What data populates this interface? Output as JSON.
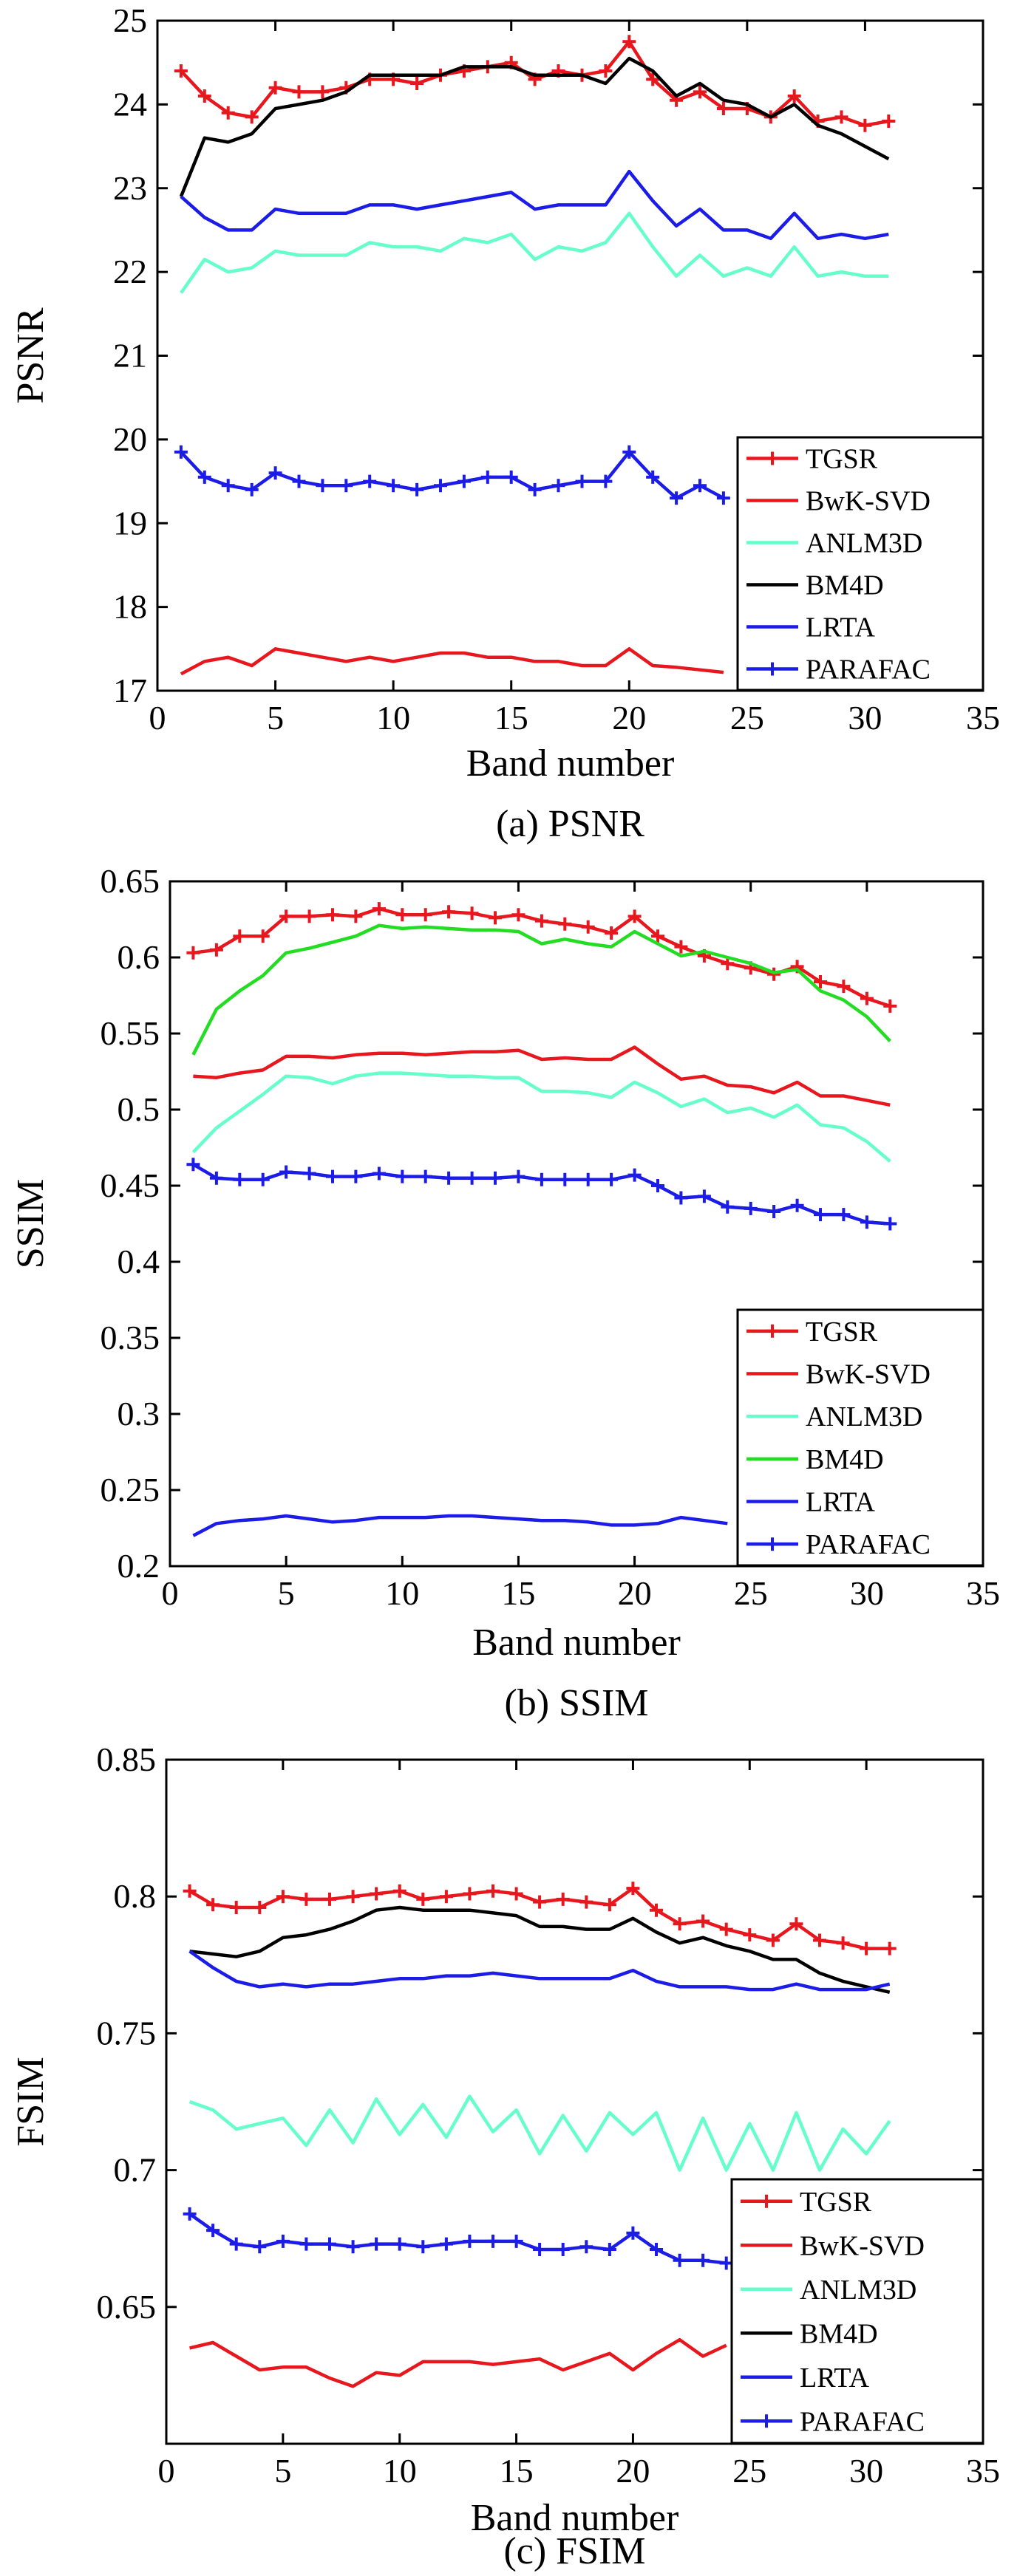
{
  "chart_data": [
    {
      "type": "line",
      "title": "",
      "caption": "(a) PSNR",
      "xlabel": "Band number",
      "ylabel": "PSNR",
      "xlim": [
        0,
        35
      ],
      "ylim": [
        17,
        25
      ],
      "xticks": [
        "0",
        "5",
        "10",
        "15",
        "20",
        "25",
        "30",
        "35"
      ],
      "yticks": [
        "17",
        "18",
        "19",
        "20",
        "21",
        "22",
        "23",
        "24",
        "25"
      ],
      "legend_position": "bottom-right",
      "x": [
        1,
        2,
        3,
        4,
        5,
        6,
        7,
        8,
        9,
        10,
        11,
        12,
        13,
        14,
        15,
        16,
        17,
        18,
        19,
        20,
        21,
        22,
        23,
        24,
        25,
        26,
        27,
        28,
        29,
        30,
        31
      ],
      "series": [
        {
          "name": "TGSR",
          "color": "#e8161d",
          "marker": "plus",
          "values": [
            24.4,
            24.1,
            23.9,
            23.85,
            24.2,
            24.15,
            24.15,
            24.2,
            24.3,
            24.3,
            24.25,
            24.35,
            24.4,
            24.45,
            24.5,
            24.3,
            24.4,
            24.35,
            24.4,
            24.75,
            24.3,
            24.05,
            24.15,
            23.95,
            23.95,
            23.85,
            24.1,
            23.8,
            23.85,
            23.75,
            23.8
          ]
        },
        {
          "name": "BwK-SVD",
          "color": "#e8161d",
          "marker": "none",
          "values": [
            17.2,
            17.35,
            17.4,
            17.3,
            17.5,
            17.45,
            17.4,
            17.35,
            17.4,
            17.35,
            17.4,
            17.45,
            17.45,
            17.4,
            17.4,
            17.35,
            17.35,
            17.3,
            17.3,
            17.5,
            17.3,
            17.28,
            17.25,
            17.22,
            null,
            null,
            null,
            null,
            null,
            null,
            null
          ]
        },
        {
          "name": "ANLM3D",
          "color": "#66ffcc",
          "marker": "none",
          "values": [
            21.75,
            22.15,
            22.0,
            22.05,
            22.25,
            22.2,
            22.2,
            22.2,
            22.35,
            22.3,
            22.3,
            22.25,
            22.4,
            22.35,
            22.45,
            22.15,
            22.3,
            22.25,
            22.35,
            22.7,
            22.3,
            21.95,
            22.2,
            21.95,
            22.05,
            21.95,
            22.3,
            21.95,
            22.0,
            21.95,
            21.95
          ]
        },
        {
          "name": "BM4D",
          "color": "#000000",
          "marker": "none",
          "values": [
            22.9,
            23.6,
            23.55,
            23.65,
            23.95,
            24.0,
            24.05,
            24.15,
            24.35,
            24.35,
            24.35,
            24.35,
            24.45,
            24.45,
            24.45,
            24.35,
            24.35,
            24.35,
            24.25,
            24.55,
            24.4,
            24.1,
            24.25,
            24.05,
            24.0,
            23.85,
            24.0,
            23.75,
            23.65,
            23.5,
            23.35
          ]
        },
        {
          "name": "LRTA",
          "color": "#1c1ce8",
          "marker": "none",
          "values": [
            22.9,
            22.65,
            22.5,
            22.5,
            22.75,
            22.7,
            22.7,
            22.7,
            22.8,
            22.8,
            22.75,
            22.8,
            22.85,
            22.9,
            22.95,
            22.75,
            22.8,
            22.8,
            22.8,
            23.2,
            22.85,
            22.55,
            22.75,
            22.5,
            22.5,
            22.4,
            22.7,
            22.4,
            22.45,
            22.4,
            22.45
          ]
        },
        {
          "name": "PARAFAC",
          "color": "#1c1ce8",
          "marker": "plus",
          "values": [
            19.85,
            19.55,
            19.45,
            19.4,
            19.6,
            19.5,
            19.45,
            19.45,
            19.5,
            19.45,
            19.4,
            19.45,
            19.5,
            19.55,
            19.55,
            19.4,
            19.45,
            19.5,
            19.5,
            19.85,
            19.55,
            19.3,
            19.45,
            19.3,
            null,
            null,
            null,
            null,
            null,
            null,
            null
          ]
        }
      ]
    },
    {
      "type": "line",
      "title": "",
      "caption": "(b) SSIM",
      "xlabel": "Band number",
      "ylabel": "SSIM",
      "xlim": [
        0,
        35
      ],
      "ylim": [
        0.2,
        0.65
      ],
      "xticks": [
        "0",
        "5",
        "10",
        "15",
        "20",
        "25",
        "30",
        "35"
      ],
      "yticks": [
        "0.2",
        "0.25",
        "0.3",
        "0.35",
        "0.4",
        "0.45",
        "0.5",
        "0.55",
        "0.6",
        "0.65"
      ],
      "legend_position": "bottom-right",
      "x": [
        1,
        2,
        3,
        4,
        5,
        6,
        7,
        8,
        9,
        10,
        11,
        12,
        13,
        14,
        15,
        16,
        17,
        18,
        19,
        20,
        21,
        22,
        23,
        24,
        25,
        26,
        27,
        28,
        29,
        30,
        31
      ],
      "series": [
        {
          "name": "TGSR",
          "color": "#e8161d",
          "marker": "plus",
          "values": [
            0.603,
            0.605,
            0.614,
            0.614,
            0.627,
            0.627,
            0.628,
            0.627,
            0.632,
            0.628,
            0.628,
            0.63,
            0.629,
            0.626,
            0.628,
            0.624,
            0.622,
            0.62,
            0.616,
            0.627,
            0.614,
            0.607,
            0.601,
            0.596,
            0.593,
            0.589,
            0.594,
            0.584,
            0.581,
            0.573,
            0.568
          ]
        },
        {
          "name": "BwK-SVD",
          "color": "#e8161d",
          "marker": "none",
          "values": [
            0.522,
            0.521,
            0.524,
            0.526,
            0.535,
            0.535,
            0.534,
            0.536,
            0.537,
            0.537,
            0.536,
            0.537,
            0.538,
            0.538,
            0.539,
            0.533,
            0.534,
            0.533,
            0.533,
            0.541,
            0.53,
            0.52,
            0.522,
            0.516,
            0.515,
            0.511,
            0.518,
            0.509,
            0.509,
            0.506,
            0.503
          ]
        },
        {
          "name": "ANLM3D",
          "color": "#66ffcc",
          "marker": "none",
          "values": [
            0.472,
            0.488,
            0.499,
            0.51,
            0.522,
            0.521,
            0.517,
            0.522,
            0.524,
            0.524,
            0.523,
            0.522,
            0.522,
            0.521,
            0.521,
            0.512,
            0.512,
            0.511,
            0.508,
            0.518,
            0.511,
            0.502,
            0.507,
            0.498,
            0.501,
            0.495,
            0.503,
            0.49,
            0.488,
            0.479,
            0.466
          ]
        },
        {
          "name": "BM4D",
          "color": "#22dd22",
          "marker": "none",
          "values": [
            0.536,
            0.566,
            0.578,
            0.588,
            0.603,
            0.606,
            0.61,
            0.614,
            0.621,
            0.619,
            0.62,
            0.619,
            0.618,
            0.618,
            0.617,
            0.609,
            0.612,
            0.609,
            0.607,
            0.617,
            0.609,
            0.601,
            0.604,
            0.6,
            0.596,
            0.59,
            0.592,
            0.578,
            0.572,
            0.561,
            0.545
          ]
        },
        {
          "name": "LRTA",
          "color": "#1c1ce8",
          "marker": "none",
          "values": [
            0.22,
            0.228,
            0.23,
            0.231,
            0.233,
            0.231,
            0.229,
            0.23,
            0.232,
            0.232,
            0.232,
            0.233,
            0.233,
            0.232,
            0.231,
            0.23,
            0.23,
            0.229,
            0.227,
            0.227,
            0.228,
            0.232,
            0.23,
            0.228,
            null,
            null,
            null,
            null,
            null,
            null,
            null
          ]
        },
        {
          "name": "PARAFAC",
          "color": "#1c1ce8",
          "marker": "plus",
          "values": [
            0.464,
            0.455,
            0.454,
            0.454,
            0.459,
            0.458,
            0.456,
            0.456,
            0.458,
            0.456,
            0.456,
            0.455,
            0.455,
            0.455,
            0.456,
            0.454,
            0.454,
            0.454,
            0.454,
            0.457,
            0.45,
            0.442,
            0.443,
            0.436,
            0.435,
            0.433,
            0.437,
            0.431,
            0.431,
            0.426,
            0.425
          ]
        }
      ]
    },
    {
      "type": "line",
      "title": "",
      "caption": "(c) FSIM",
      "xlabel": "Band number",
      "ylabel": "FSIM",
      "xlim": [
        0,
        35
      ],
      "ylim": [
        0.6,
        0.85
      ],
      "yrange_note": "axis spans 0.6 to 0.85",
      "xticks": [
        "0",
        "5",
        "10",
        "15",
        "20",
        "25",
        "30",
        "35"
      ],
      "yticks": [
        "0.65",
        "0.7",
        "0.75",
        "0.8",
        "0.85"
      ],
      "legend_position": "bottom-right",
      "x": [
        1,
        2,
        3,
        4,
        5,
        6,
        7,
        8,
        9,
        10,
        11,
        12,
        13,
        14,
        15,
        16,
        17,
        18,
        19,
        20,
        21,
        22,
        23,
        24,
        25,
        26,
        27,
        28,
        29,
        30,
        31
      ],
      "series": [
        {
          "name": "TGSR",
          "color": "#e8161d",
          "marker": "plus",
          "values": [
            0.802,
            0.797,
            0.796,
            0.796,
            0.8,
            0.799,
            0.799,
            0.8,
            0.801,
            0.802,
            0.799,
            0.8,
            0.801,
            0.802,
            0.801,
            0.798,
            0.799,
            0.798,
            0.797,
            0.803,
            0.795,
            0.79,
            0.791,
            0.788,
            0.786,
            0.784,
            0.79,
            0.784,
            0.783,
            0.781,
            0.781
          ]
        },
        {
          "name": "BwK-SVD",
          "color": "#e8161d",
          "marker": "none",
          "values": [
            0.635,
            0.637,
            0.632,
            0.627,
            0.628,
            0.628,
            0.624,
            0.621,
            0.626,
            0.625,
            0.63,
            0.63,
            0.63,
            0.629,
            0.63,
            0.631,
            0.627,
            0.63,
            0.633,
            0.627,
            0.633,
            0.638,
            0.632,
            0.636,
            null,
            null,
            null,
            null,
            null,
            null,
            null
          ]
        },
        {
          "name": "ANLM3D",
          "color": "#66ffcc",
          "marker": "none",
          "values": [
            0.725,
            0.722,
            0.715,
            0.717,
            0.719,
            0.709,
            0.722,
            0.71,
            0.726,
            0.713,
            0.724,
            0.712,
            0.727,
            0.714,
            0.722,
            0.706,
            0.72,
            0.707,
            0.721,
            0.713,
            0.721,
            0.7,
            0.719,
            0.7,
            0.717,
            0.7,
            0.721,
            0.7,
            0.715,
            0.706,
            0.718
          ]
        },
        {
          "name": "BM4D",
          "color": "#000000",
          "marker": "none",
          "values": [
            0.78,
            0.779,
            0.778,
            0.78,
            0.785,
            0.786,
            0.788,
            0.791,
            0.795,
            0.796,
            0.795,
            0.795,
            0.795,
            0.794,
            0.793,
            0.789,
            0.789,
            0.788,
            0.788,
            0.792,
            0.787,
            0.783,
            0.785,
            0.782,
            0.78,
            0.777,
            0.777,
            0.772,
            0.769,
            0.767,
            0.765
          ]
        },
        {
          "name": "LRTA",
          "color": "#1c1ce8",
          "marker": "none",
          "values": [
            0.78,
            0.774,
            0.769,
            0.767,
            0.768,
            0.767,
            0.768,
            0.768,
            0.769,
            0.77,
            0.77,
            0.771,
            0.771,
            0.772,
            0.771,
            0.77,
            0.77,
            0.77,
            0.77,
            0.773,
            0.769,
            0.767,
            0.767,
            0.767,
            0.766,
            0.766,
            0.768,
            0.766,
            0.766,
            0.766,
            0.768
          ]
        },
        {
          "name": "PARAFAC",
          "color": "#1c1ce8",
          "marker": "plus",
          "values": [
            0.684,
            0.678,
            0.673,
            0.672,
            0.674,
            0.673,
            0.673,
            0.672,
            0.673,
            0.673,
            0.672,
            0.673,
            0.674,
            0.674,
            0.674,
            0.671,
            0.671,
            0.672,
            0.671,
            0.677,
            0.671,
            0.667,
            0.667,
            0.666,
            null,
            null,
            null,
            null,
            null,
            null,
            null
          ]
        }
      ]
    }
  ]
}
